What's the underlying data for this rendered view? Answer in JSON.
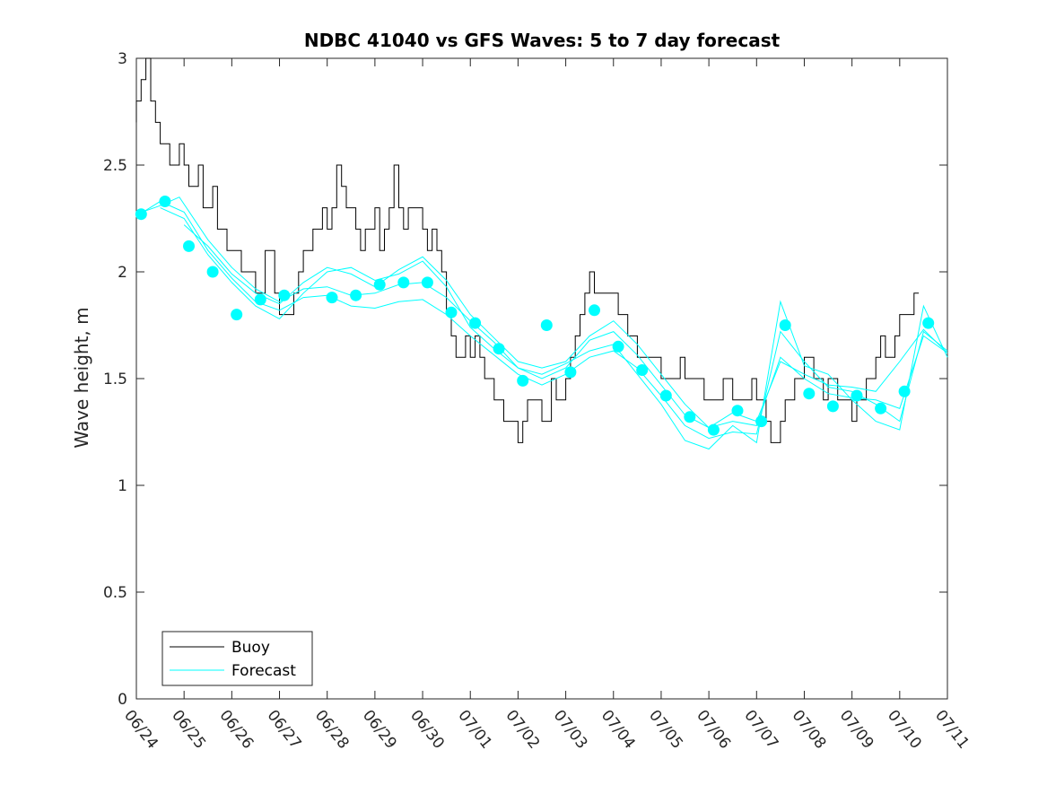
{
  "chart_data": {
    "type": "line",
    "title": "NDBC 41040 vs GFS Waves: 5 to 7 day forecast",
    "xlabel": "",
    "ylabel": "Wave height, m",
    "ylim": [
      0,
      3
    ],
    "yticks": [
      "0",
      "0.5",
      "1",
      "1.5",
      "2",
      "2.5",
      "3"
    ],
    "xlim_days": [
      0,
      17
    ],
    "xticks": [
      "06/24",
      "06/25",
      "06/26",
      "06/27",
      "06/28",
      "06/29",
      "06/30",
      "07/01",
      "07/02",
      "07/03",
      "07/04",
      "07/05",
      "07/06",
      "07/07",
      "07/08",
      "07/09",
      "07/10",
      "07/11"
    ],
    "grid": false,
    "legend": {
      "position": "bottom-left",
      "entries": [
        "Buoy",
        "Forecast"
      ]
    },
    "colors": {
      "buoy": "#000000",
      "forecast": "#00ffff",
      "axes": "#262626"
    },
    "series": [
      {
        "name": "Buoy",
        "x": [
          0.0,
          0.1,
          0.2,
          0.3,
          0.4,
          0.5,
          0.6,
          0.7,
          0.8,
          0.9,
          1.0,
          1.1,
          1.2,
          1.3,
          1.4,
          1.5,
          1.6,
          1.7,
          1.8,
          1.9,
          2.0,
          2.1,
          2.2,
          2.3,
          2.4,
          2.5,
          2.6,
          2.7,
          2.8,
          2.9,
          3.0,
          3.1,
          3.2,
          3.3,
          3.4,
          3.5,
          3.6,
          3.7,
          3.8,
          3.9,
          4.0,
          4.1,
          4.2,
          4.3,
          4.4,
          4.5,
          4.6,
          4.7,
          4.8,
          4.9,
          5.0,
          5.1,
          5.2,
          5.3,
          5.4,
          5.5,
          5.6,
          5.7,
          5.8,
          5.9,
          6.0,
          6.1,
          6.2,
          6.3,
          6.4,
          6.5,
          6.6,
          6.7,
          6.8,
          6.9,
          7.0,
          7.1,
          7.2,
          7.3,
          7.4,
          7.5,
          7.6,
          7.7,
          7.8,
          7.9,
          8.0,
          8.1,
          8.2,
          8.3,
          8.4,
          8.5,
          8.6,
          8.7,
          8.8,
          8.9,
          9.0,
          9.1,
          9.2,
          9.3,
          9.4,
          9.5,
          9.6,
          9.7,
          9.8,
          9.9,
          10.0,
          10.1,
          10.2,
          10.3,
          10.4,
          10.5,
          10.6,
          10.7,
          10.8,
          10.9,
          11.0,
          11.1,
          11.2,
          11.3,
          11.4,
          11.5,
          11.6,
          11.7,
          11.8,
          11.9,
          12.0,
          12.1,
          12.2,
          12.3,
          12.4,
          12.5,
          12.6,
          12.7,
          12.8,
          12.9,
          13.0,
          13.1,
          13.2,
          13.3,
          13.4,
          13.5,
          13.6,
          13.7,
          13.8,
          13.9,
          14.0,
          14.1,
          14.2,
          14.3,
          14.4,
          14.5,
          14.6,
          14.7,
          14.8,
          14.9,
          15.0,
          15.1,
          15.2,
          15.3,
          15.4,
          15.5,
          15.6,
          15.7,
          15.8,
          15.9,
          16.0,
          16.1,
          16.2,
          16.3,
          16.4
        ],
        "values": [
          2.7,
          2.8,
          2.9,
          3.0,
          2.8,
          2.7,
          2.6,
          2.6,
          2.5,
          2.5,
          2.6,
          2.5,
          2.4,
          2.4,
          2.5,
          2.3,
          2.3,
          2.4,
          2.2,
          2.2,
          2.1,
          2.1,
          2.1,
          2.0,
          2.0,
          2.0,
          1.9,
          1.9,
          2.1,
          2.1,
          1.9,
          1.8,
          1.8,
          1.8,
          1.9,
          2.0,
          2.1,
          2.1,
          2.2,
          2.2,
          2.3,
          2.2,
          2.3,
          2.5,
          2.4,
          2.3,
          2.3,
          2.2,
          2.1,
          2.2,
          2.2,
          2.3,
          2.1,
          2.2,
          2.3,
          2.5,
          2.3,
          2.2,
          2.3,
          2.3,
          2.3,
          2.2,
          2.1,
          2.2,
          2.1,
          2.0,
          1.8,
          1.7,
          1.6,
          1.6,
          1.7,
          1.6,
          1.7,
          1.6,
          1.5,
          1.5,
          1.4,
          1.4,
          1.3,
          1.3,
          1.3,
          1.2,
          1.3,
          1.4,
          1.4,
          1.4,
          1.3,
          1.3,
          1.5,
          1.4,
          1.4,
          1.5,
          1.6,
          1.7,
          1.8,
          1.9,
          2.0,
          1.9,
          1.9,
          1.9,
          1.9,
          1.9,
          1.8,
          1.8,
          1.7,
          1.7,
          1.6,
          1.6,
          1.6,
          1.6,
          1.6,
          1.5,
          1.5,
          1.5,
          1.5,
          1.6,
          1.5,
          1.5,
          1.5,
          1.5,
          1.4,
          1.4,
          1.4,
          1.4,
          1.5,
          1.5,
          1.4,
          1.4,
          1.4,
          1.4,
          1.5,
          1.4,
          1.4,
          1.3,
          1.2,
          1.2,
          1.3,
          1.4,
          1.4,
          1.5,
          1.5,
          1.6,
          1.6,
          1.5,
          1.5,
          1.4,
          1.5,
          1.5,
          1.4,
          1.4,
          1.4,
          1.3,
          1.4,
          1.4,
          1.5,
          1.5,
          1.6,
          1.7,
          1.6,
          1.6,
          1.7,
          1.8,
          1.8,
          1.8,
          1.9
        ]
      },
      {
        "name": "Forecast",
        "x": [
          0.0,
          0.5,
          0.9,
          1.5,
          2.0,
          2.5,
          3.0,
          3.5,
          4.0,
          4.5,
          5.0,
          5.5,
          6.0,
          6.5,
          7.0,
          7.5,
          8.0,
          8.5,
          9.0,
          9.5,
          10.0,
          10.5,
          11.0,
          11.5,
          12.0,
          12.5,
          13.0,
          13.5,
          14.0,
          14.5,
          15.0,
          15.5,
          16.0,
          16.5,
          17.0
        ],
        "values": [
          2.27,
          2.31,
          2.35,
          2.15,
          2.02,
          1.92,
          1.86,
          1.92,
          1.93,
          1.89,
          1.9,
          1.94,
          1.95,
          1.88,
          1.77,
          1.67,
          1.55,
          1.5,
          1.55,
          1.68,
          1.72,
          1.61,
          1.47,
          1.33,
          1.27,
          1.3,
          1.28,
          1.6,
          1.5,
          1.43,
          1.41,
          1.4,
          1.36,
          1.7,
          1.62
        ]
      },
      {
        "name": "Forecast",
        "x": [
          0.0,
          0.5,
          1.0,
          1.5,
          2.0,
          2.5,
          3.0,
          3.5,
          4.0,
          4.5,
          5.0,
          5.5,
          6.0,
          6.5,
          7.0,
          7.5,
          8.0,
          8.5,
          9.0,
          9.5,
          10.0,
          10.5,
          11.0,
          11.5,
          12.0,
          12.5,
          13.0,
          13.5,
          14.0,
          14.5,
          15.0,
          15.5,
          16.0,
          16.5,
          17.0
        ],
        "values": [
          2.26,
          2.33,
          2.28,
          2.1,
          1.97,
          1.86,
          1.82,
          1.88,
          1.89,
          1.84,
          1.83,
          1.86,
          1.87,
          1.8,
          1.7,
          1.61,
          1.52,
          1.47,
          1.52,
          1.6,
          1.63,
          1.55,
          1.42,
          1.28,
          1.22,
          1.25,
          1.24,
          1.72,
          1.58,
          1.46,
          1.44,
          1.38,
          1.3,
          1.72,
          1.63
        ]
      },
      {
        "name": "Forecast",
        "x": [
          0.5,
          1.0,
          1.5,
          2.0,
          2.5,
          3.0,
          3.5,
          4.0,
          4.5,
          5.0,
          5.5,
          6.0,
          6.5,
          7.0,
          7.5,
          8.0,
          8.5,
          9.0,
          9.5,
          10.0,
          10.5,
          11.0,
          11.5,
          12.0,
          12.5,
          13.0,
          13.5,
          14.0,
          14.5,
          15.0,
          15.5,
          16.0,
          16.5,
          17.0
        ],
        "values": [
          2.3,
          2.25,
          2.08,
          1.95,
          1.84,
          1.78,
          1.9,
          2.0,
          2.02,
          1.96,
          1.99,
          2.05,
          1.93,
          1.74,
          1.64,
          1.55,
          1.52,
          1.57,
          1.63,
          1.66,
          1.52,
          1.38,
          1.21,
          1.17,
          1.28,
          1.2,
          1.86,
          1.56,
          1.52,
          1.4,
          1.3,
          1.26,
          1.84,
          1.6
        ]
      },
      {
        "name": "Forecast",
        "x": [
          1.0,
          1.5,
          2.0,
          2.5,
          3.0,
          3.5,
          4.0,
          4.5,
          5.0,
          5.5,
          6.0,
          6.5,
          7.0,
          7.5,
          8.0,
          8.5,
          9.0,
          9.5,
          10.0,
          10.5,
          11.0,
          11.5,
          12.0,
          12.5,
          13.0,
          13.5,
          14.0,
          14.5,
          15.0,
          15.5,
          16.0,
          16.5,
          17.0
        ],
        "values": [
          2.22,
          2.12,
          1.99,
          1.9,
          1.85,
          1.95,
          2.02,
          1.99,
          1.93,
          2.01,
          2.07,
          1.96,
          1.8,
          1.69,
          1.58,
          1.55,
          1.58,
          1.7,
          1.77,
          1.66,
          1.52,
          1.38,
          1.27,
          1.34,
          1.3,
          1.58,
          1.52,
          1.47,
          1.46,
          1.44,
          1.58,
          1.73,
          1.62
        ]
      }
    ],
    "forecast_markers": {
      "x": [
        0.1,
        0.6,
        1.1,
        1.6,
        2.1,
        2.6,
        3.1,
        4.1,
        4.6,
        5.1,
        5.6,
        6.1,
        6.6,
        7.1,
        7.6,
        8.1,
        8.6,
        9.1,
        9.6,
        10.1,
        10.6,
        11.1,
        11.6,
        12.1,
        12.6,
        13.1,
        13.6,
        14.1,
        14.6,
        15.1,
        15.6,
        16.1,
        16.6
      ],
      "values": [
        2.27,
        2.33,
        2.12,
        2.0,
        1.8,
        1.87,
        1.89,
        1.88,
        1.89,
        1.94,
        1.95,
        1.95,
        1.81,
        1.76,
        1.64,
        1.49,
        1.75,
        1.53,
        1.82,
        1.65,
        1.54,
        1.42,
        1.32,
        1.26,
        1.35,
        1.3,
        1.75,
        1.43,
        1.37,
        1.42,
        1.36,
        1.44,
        1.76
      ]
    }
  }
}
